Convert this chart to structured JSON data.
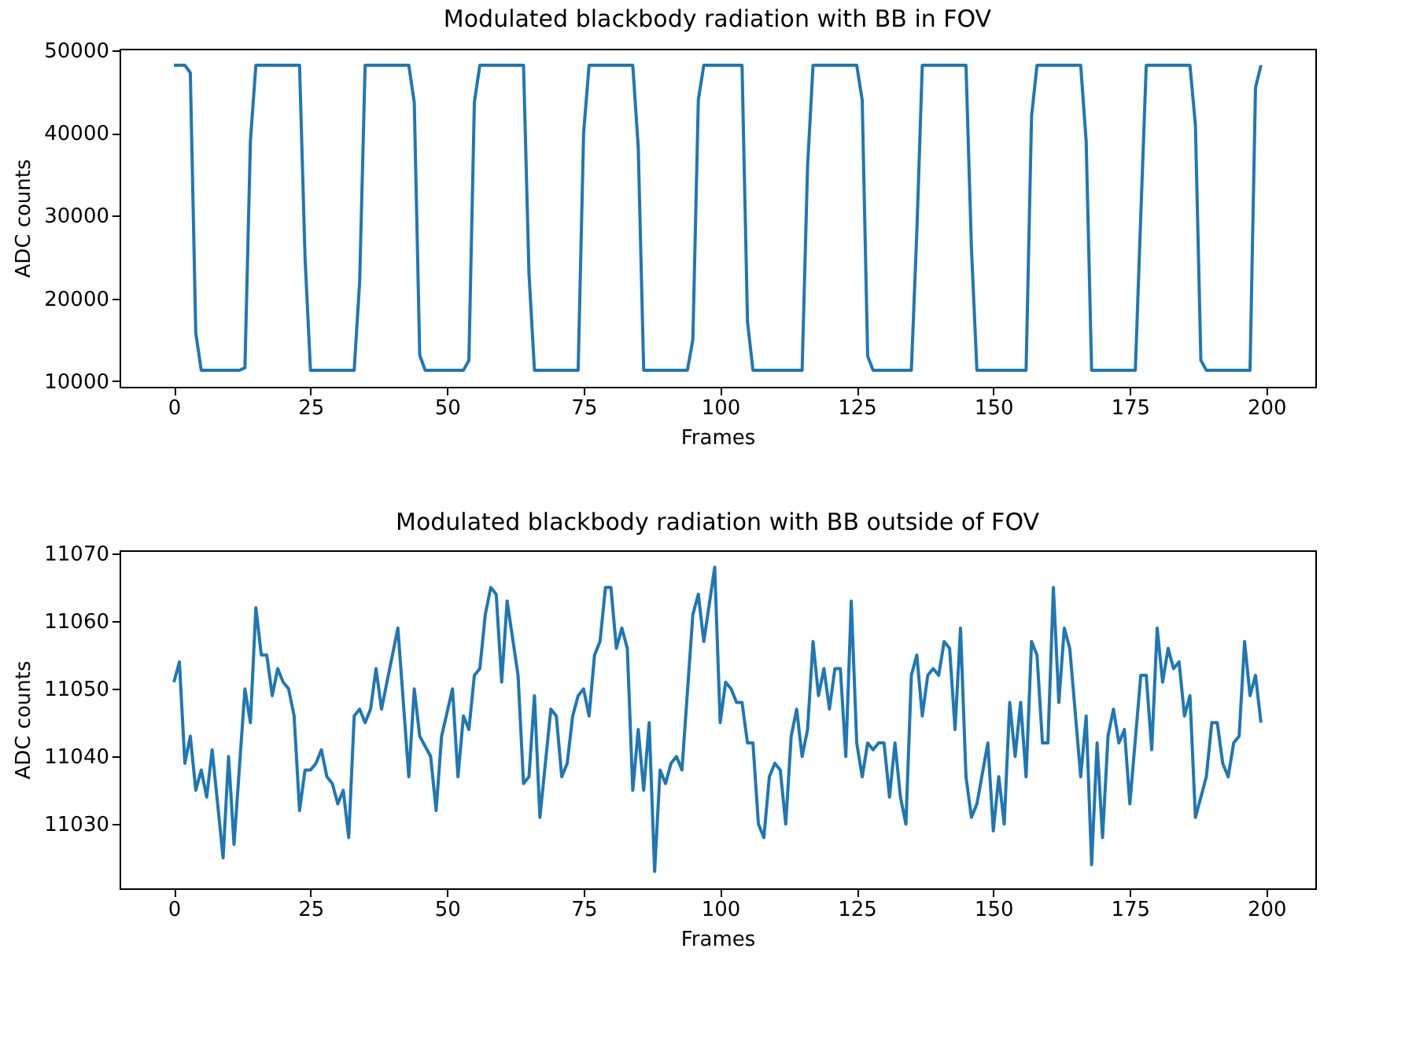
{
  "chart_data": [
    {
      "type": "line",
      "title": "Modulated blackbody radiation with BB in FOV",
      "xlabel": "Frames",
      "ylabel": "ADC counts",
      "color": "#1f77b4",
      "x": [
        0,
        2,
        3,
        4,
        5,
        12,
        13,
        14,
        15,
        23,
        24,
        25,
        33,
        34,
        35,
        43,
        44,
        45,
        46,
        53,
        54,
        55,
        56,
        64,
        65,
        66,
        74,
        75,
        76,
        84,
        85,
        86,
        94,
        95,
        96,
        97,
        104,
        105,
        106,
        115,
        116,
        117,
        125,
        126,
        127,
        128,
        135,
        136,
        137,
        145,
        146,
        147,
        156,
        157,
        158,
        166,
        167,
        168,
        176,
        177,
        178,
        186,
        187,
        188,
        189,
        197,
        198,
        199
      ],
      "values": [
        48200,
        48200,
        47300,
        15800,
        11300,
        11300,
        11600,
        39000,
        48200,
        48200,
        25000,
        11300,
        11300,
        22000,
        48200,
        48200,
        43700,
        13100,
        11300,
        11300,
        12500,
        43700,
        48200,
        48200,
        23000,
        11300,
        11300,
        40000,
        48200,
        48200,
        38300,
        11300,
        11300,
        15000,
        44000,
        48200,
        48200,
        17200,
        11300,
        11300,
        36000,
        48200,
        48200,
        44000,
        13000,
        11300,
        11300,
        28000,
        48200,
        48200,
        26000,
        11300,
        11300,
        42000,
        48200,
        48200,
        39000,
        11300,
        11300,
        30000,
        48200,
        48200,
        41000,
        12500,
        11300,
        11300,
        45500,
        48200
      ],
      "xlim": [
        -9.95,
        208.95
      ],
      "xticks": [
        0,
        25,
        50,
        75,
        100,
        125,
        150,
        175,
        200
      ],
      "ylim": [
        9300,
        50200
      ],
      "yticks": [
        10000,
        20000,
        30000,
        40000,
        50000
      ]
    },
    {
      "type": "line",
      "title": "Modulated blackbody radiation with BB outside of FOV",
      "xlabel": "Frames",
      "ylabel": "ADC counts",
      "color": "#1f77b4",
      "x": [
        0,
        1,
        2,
        3,
        4,
        5,
        6,
        7,
        9,
        10,
        11,
        13,
        14,
        15,
        16,
        17,
        18,
        19,
        20,
        21,
        22,
        23,
        24,
        25,
        26,
        27,
        28,
        29,
        30,
        31,
        32,
        33,
        34,
        35,
        36,
        37,
        38,
        39,
        41,
        43,
        44,
        45,
        47,
        48,
        49,
        51,
        52,
        53,
        54,
        55,
        56,
        57,
        58,
        59,
        60,
        61,
        63,
        64,
        65,
        66,
        67,
        69,
        70,
        71,
        72,
        73,
        74,
        75,
        76,
        77,
        78,
        79,
        80,
        81,
        82,
        83,
        84,
        85,
        86,
        87,
        88,
        89,
        90,
        91,
        92,
        93,
        95,
        96,
        97,
        99,
        100,
        101,
        102,
        103,
        104,
        105,
        106,
        107,
        108,
        109,
        110,
        111,
        112,
        113,
        114,
        115,
        116,
        117,
        118,
        119,
        120,
        121,
        122,
        123,
        124,
        125,
        126,
        127,
        128,
        129,
        130,
        131,
        132,
        133,
        134,
        135,
        136,
        137,
        138,
        139,
        140,
        141,
        142,
        143,
        144,
        145,
        146,
        147,
        149,
        150,
        151,
        152,
        153,
        154,
        155,
        156,
        157,
        158,
        159,
        160,
        161,
        162,
        163,
        164,
        166,
        167,
        168,
        169,
        170,
        171,
        172,
        173,
        174,
        175,
        177,
        178,
        179,
        180,
        181,
        182,
        183,
        184,
        185,
        186,
        187,
        188,
        189,
        190,
        191,
        192,
        193,
        194,
        195,
        196,
        197,
        198,
        199
      ],
      "values": [
        11051,
        11054,
        11039,
        11043,
        11035,
        11038,
        11034,
        11041,
        11025,
        11040,
        11027,
        11050,
        11045,
        11062,
        11055,
        11055,
        11049,
        11053,
        11051,
        11050,
        11046,
        11032,
        11038,
        11038,
        11039,
        11041,
        11037,
        11036,
        11033,
        11035,
        11028,
        11046,
        11047,
        11045,
        11047,
        11053,
        11047,
        11051,
        11059,
        11037,
        11050,
        11043,
        11040,
        11032,
        11043,
        11050,
        11037,
        11046,
        11044,
        11052,
        11053,
        11061,
        11065,
        11064,
        11051,
        11063,
        11052,
        11036,
        11037,
        11049,
        11031,
        11047,
        11046,
        11037,
        11039,
        11046,
        11049,
        11050,
        11046,
        11055,
        11057,
        11065,
        11065,
        11056,
        11059,
        11056,
        11035,
        11044,
        11035,
        11045,
        11023,
        11038,
        11036,
        11039,
        11040,
        11038,
        11061,
        11064,
        11057,
        11068,
        11045,
        11051,
        11050,
        11048,
        11048,
        11042,
        11042,
        11030,
        11028,
        11037,
        11039,
        11038,
        11030,
        11043,
        11047,
        11040,
        11044,
        11057,
        11049,
        11053,
        11047,
        11053,
        11053,
        11040,
        11063,
        11042,
        11037,
        11042,
        11041,
        11042,
        11042,
        11034,
        11042,
        11034,
        11030,
        11052,
        11055,
        11046,
        11052,
        11053,
        11052,
        11057,
        11056,
        11044,
        11059,
        11037,
        11031,
        11033,
        11042,
        11029,
        11037,
        11030,
        11048,
        11040,
        11048,
        11037,
        11057,
        11055,
        11042,
        11042,
        11065,
        11048,
        11059,
        11056,
        11037,
        11046,
        11024,
        11042,
        11028,
        11043,
        11047,
        11042,
        11044,
        11033,
        11052,
        11052,
        11041,
        11059,
        11051,
        11056,
        11053,
        11054,
        11046,
        11049,
        11031,
        11034,
        11037,
        11045,
        11045,
        11039,
        11037,
        11042,
        11043,
        11057,
        11049,
        11052,
        11045
      ],
      "xlim": [
        -9.95,
        208.95
      ],
      "xticks": [
        0,
        25,
        50,
        75,
        100,
        125,
        150,
        175,
        200
      ],
      "ylim": [
        11020.5,
        11070.5
      ],
      "yticks": [
        11030,
        11040,
        11050,
        11060,
        11070
      ]
    }
  ]
}
